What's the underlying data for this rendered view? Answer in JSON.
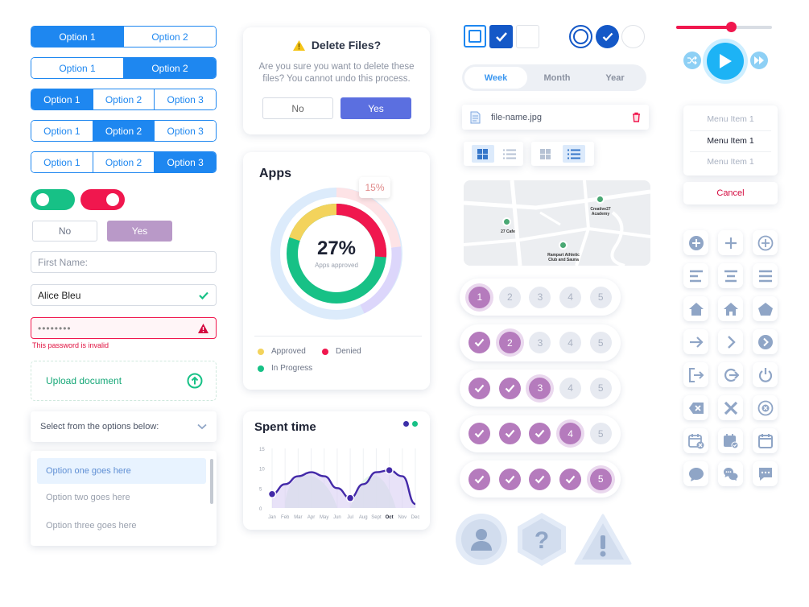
{
  "segs": [
    [
      "Option 1",
      "Option 2"
    ],
    [
      "Option 1",
      "Option 2"
    ],
    [
      "Option 1",
      "Option 2",
      "Option 3"
    ],
    [
      "Option 1",
      "Option 2",
      "Option 3"
    ],
    [
      "Option 1",
      "Option 2",
      "Option 3"
    ]
  ],
  "segs_active": [
    0,
    1,
    0,
    1,
    2
  ],
  "yesno": {
    "no": "No",
    "yes": "Yes"
  },
  "firstname_placeholder": "First Name:",
  "name_value": "Alice Bleu",
  "password_value": "••••••••",
  "password_error": "This password is invalid",
  "upload_label": "Upload document",
  "select_label": "Select from the options below:",
  "options": [
    "Option one goes here",
    "Option two goes here",
    "Option three goes here"
  ],
  "dialog": {
    "title": "Delete Files?",
    "body": "Are you sure you want to delete these files? You cannot undo this process.",
    "no": "No",
    "yes": "Yes"
  },
  "apps": {
    "title": "Apps",
    "pct": "27%",
    "sub": "Apps approved",
    "badge": "15%",
    "legend": [
      "Approved",
      "Denied",
      "In Progress"
    ]
  },
  "spent": {
    "title": "Spent time"
  },
  "chart_data": {
    "type": "area",
    "x": [
      "Jan",
      "Feb",
      "Mar",
      "Apr",
      "May",
      "Jun",
      "Jul",
      "Aug",
      "Sept",
      "Oct",
      "Nov",
      "Dec"
    ],
    "ylim": [
      0,
      15
    ],
    "yticks": [
      0,
      5,
      10,
      15
    ],
    "highlight": "Oct",
    "series": [
      {
        "values": [
          3.5,
          6,
          8,
          9,
          8,
          5,
          2.5,
          6,
          9,
          9.5,
          8,
          1
        ]
      }
    ]
  },
  "period": [
    "Week",
    "Month",
    "Year"
  ],
  "file_name": "file-name.jpg",
  "map_labels": [
    "Creative27 Academy",
    "27 Cafe",
    "Rampart Athletic Club and Sauna"
  ],
  "menu": [
    "Menu Item 1",
    "Menu Item 1",
    "Menu Item 1"
  ],
  "cancel": "Cancel",
  "colors": {
    "blue": "#1e87f0",
    "purple": "#b57bbd",
    "green": "#17c186",
    "red": "#f0174e",
    "yellow": "#f3d35c"
  }
}
